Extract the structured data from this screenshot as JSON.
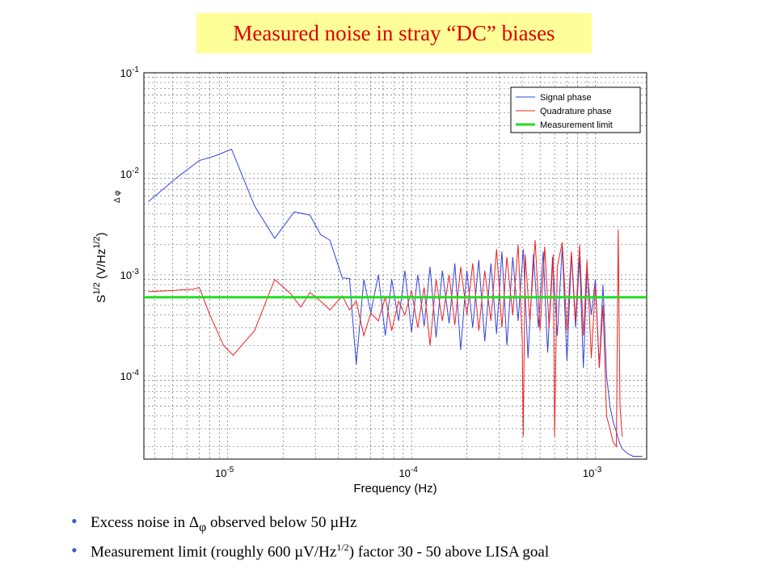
{
  "slide": {
    "title": "Measured noise in stray “DC” biases",
    "title_color": "#e00000",
    "title_bg": "#ffff99",
    "bullets": [
      {
        "pre": "Excess noise in ",
        "symbol": "Δ",
        "sub": "φ",
        "post": " observed below 50 µHz"
      },
      {
        "pre": "Measurement limit (roughly 600 µV/Hz",
        "sup": "1/2",
        "post": ") factor 30 - 50 above LISA goal"
      }
    ],
    "bullet_color": "#3366cc"
  },
  "chart_data": {
    "type": "line",
    "x_scale": "log",
    "y_scale": "log",
    "xlim": [
      3.5e-06,
      0.0019
    ],
    "ylim": [
      1.5e-05,
      0.1
    ],
    "grid": true,
    "xlabel": "Frequency (Hz)",
    "ylabel": "S",
    "ylabel_sup": "1/2",
    "ylabel_sub": "Δ",
    "ylabel_subsub": "φ",
    "ylabel_unit_pre": " (V/Hz",
    "ylabel_unit_sup": "1/2",
    "ylabel_unit_post": ")",
    "x_ticks": [
      {
        "value": 1e-05,
        "base": "10",
        "exp": "-5"
      },
      {
        "value": 0.0001,
        "base": "10",
        "exp": "-4"
      },
      {
        "value": 0.001,
        "base": "10",
        "exp": "-3"
      }
    ],
    "y_ticks": [
      {
        "value": 0.0001,
        "base": "10",
        "exp": "-4"
      },
      {
        "value": 0.001,
        "base": "10",
        "exp": "-3"
      },
      {
        "value": 0.01,
        "base": "10",
        "exp": "-2"
      },
      {
        "value": 0.1,
        "base": "10",
        "exp": "-1"
      }
    ],
    "legend_position": "top-right",
    "series": [
      {
        "name": "Signal phase",
        "color": "#3344dd",
        "points": [
          [
            3.7e-06,
            0.0053
          ],
          [
            5.3e-06,
            0.0092
          ],
          [
            7e-06,
            0.0135
          ],
          [
            8.5e-06,
            0.015
          ],
          [
            1.05e-05,
            0.0175
          ],
          [
            1.4e-05,
            0.0048
          ],
          [
            1.8e-05,
            0.0023
          ],
          [
            2.3e-05,
            0.0042
          ],
          [
            2.8e-05,
            0.0039
          ],
          [
            3.2e-05,
            0.0025
          ],
          [
            3.6e-05,
            0.0022
          ],
          [
            4.2e-05,
            0.00093
          ],
          [
            4.6e-05,
            0.00092
          ],
          [
            5e-05,
            0.00013
          ],
          [
            5.5e-05,
            0.0009
          ],
          [
            6e-05,
            0.00042
          ],
          [
            6.6e-05,
            0.001
          ],
          [
            7.2e-05,
            0.00025
          ],
          [
            7.8e-05,
            0.0009
          ],
          [
            8.5e-05,
            0.00035
          ],
          [
            9.2e-05,
            0.0011
          ],
          [
            0.0001,
            0.00027
          ],
          [
            0.000108,
            0.001
          ],
          [
            0.000117,
            0.00031
          ],
          [
            0.000126,
            0.0012
          ],
          [
            0.000136,
            0.00024
          ],
          [
            0.000147,
            0.0011
          ],
          [
            0.00016,
            0.00033
          ],
          [
            0.000172,
            0.0013
          ],
          [
            0.000185,
            0.00018
          ],
          [
            0.0002,
            0.0011
          ],
          [
            0.000215,
            0.0003
          ],
          [
            0.000232,
            0.0014
          ],
          [
            0.00025,
            0.00022
          ],
          [
            0.00027,
            0.0013
          ],
          [
            0.00029,
            0.00026
          ],
          [
            0.00031,
            0.0017
          ],
          [
            0.00033,
            0.0002
          ],
          [
            0.000355,
            0.0015
          ],
          [
            0.00038,
            0.00035
          ],
          [
            0.000405,
            0.0018
          ],
          [
            0.00043,
            0.00015
          ],
          [
            0.00046,
            0.0016
          ],
          [
            0.00049,
            0.0003
          ],
          [
            0.00052,
            0.0017
          ],
          [
            0.00055,
            0.00017
          ],
          [
            0.000585,
            0.0015
          ],
          [
            0.00062,
            0.00025
          ],
          [
            0.00066,
            0.0019
          ],
          [
            0.0007,
            0.00014
          ],
          [
            0.00074,
            0.0016
          ],
          [
            0.00078,
            0.0003
          ],
          [
            0.00082,
            0.0015
          ],
          [
            0.00086,
            0.00012
          ],
          [
            0.0009,
            0.0011
          ],
          [
            0.00095,
            0.0004
          ],
          [
            0.001,
            0.0009
          ],
          [
            0.00105,
            0.00012
          ],
          [
            0.0011,
            0.0008
          ],
          [
            0.00115,
            0.0001
          ],
          [
            0.0012,
            5e-05
          ],
          [
            0.00125,
            3.5e-05
          ],
          [
            0.0013,
            2.8e-05
          ],
          [
            0.00135,
            2.2e-05
          ],
          [
            0.0014,
            1.9e-05
          ],
          [
            0.0015,
            1.7e-05
          ],
          [
            0.0016,
            1.6e-05
          ],
          [
            0.0017,
            1.6e-05
          ],
          [
            0.0018,
            1.6e-05
          ]
        ]
      },
      {
        "name": "Quadrature phase",
        "color": "#ee2222",
        "points": [
          [
            3.7e-06,
            0.00068
          ],
          [
            5e-06,
            0.0007
          ],
          [
            6.5e-06,
            0.00072
          ],
          [
            7e-06,
            0.00075
          ],
          [
            8e-06,
            0.0004
          ],
          [
            9.5e-06,
            0.0002
          ],
          [
            1.07e-05,
            0.00016
          ],
          [
            1.4e-05,
            0.00028
          ],
          [
            1.8e-05,
            0.0009
          ],
          [
            2.2e-05,
            0.00065
          ],
          [
            2.5e-05,
            0.00048
          ],
          [
            2.8e-05,
            0.00067
          ],
          [
            3.2e-05,
            0.00055
          ],
          [
            3.6e-05,
            0.00045
          ],
          [
            4.2e-05,
            0.00062
          ],
          [
            4.6e-05,
            0.00045
          ],
          [
            5e-05,
            0.00055
          ],
          [
            5.5e-05,
            0.00025
          ],
          [
            6e-05,
            0.00042
          ],
          [
            6.6e-05,
            0.00035
          ],
          [
            7.2e-05,
            0.0006
          ],
          [
            7.8e-05,
            0.00028
          ],
          [
            8.5e-05,
            0.00055
          ],
          [
            9.2e-05,
            0.0004
          ],
          [
            0.0001,
            0.0007
          ],
          [
            0.000108,
            0.0003
          ],
          [
            0.000117,
            0.00075
          ],
          [
            0.000126,
            0.0002
          ],
          [
            0.000136,
            0.0009
          ],
          [
            0.000147,
            0.00035
          ],
          [
            0.00016,
            0.001
          ],
          [
            0.000172,
            0.00032
          ],
          [
            0.000185,
            0.0012
          ],
          [
            0.0002,
            0.0004
          ],
          [
            0.000215,
            0.0013
          ],
          [
            0.000232,
            0.00028
          ],
          [
            0.00025,
            0.0011
          ],
          [
            0.00027,
            0.00035
          ],
          [
            0.00029,
            0.0018
          ],
          [
            0.00031,
            0.0003
          ],
          [
            0.00033,
            0.0015
          ],
          [
            0.000355,
            0.0004
          ],
          [
            0.00038,
            0.002
          ],
          [
            0.0004,
            0.00022
          ],
          [
            0.000405,
            2.5e-05
          ],
          [
            0.000415,
            0.0016
          ],
          [
            0.00044,
            0.00035
          ],
          [
            0.00047,
            0.0022
          ],
          [
            0.0005,
            0.00028
          ],
          [
            0.00053,
            0.0019
          ],
          [
            0.00056,
            0.0003
          ],
          [
            0.00059,
            0.0016
          ],
          [
            0.0006,
            2.5e-05
          ],
          [
            0.00062,
            0.0012
          ],
          [
            0.00066,
            0.0021
          ],
          [
            0.0007,
            0.00028
          ],
          [
            0.00074,
            0.0017
          ],
          [
            0.00078,
            0.00035
          ],
          [
            0.00082,
            0.002
          ],
          [
            0.00086,
            0.00025
          ],
          [
            0.0009,
            0.0014
          ],
          [
            0.00095,
            0.00015
          ],
          [
            0.001,
            0.0008
          ],
          [
            0.00105,
            0.00012
          ],
          [
            0.0011,
            0.0005
          ],
          [
            0.00115,
            4e-05
          ],
          [
            0.0012,
            3e-05
          ],
          [
            0.00125,
            2.2e-05
          ],
          [
            0.0013,
            2e-05
          ],
          [
            0.00133,
            0.0028
          ],
          [
            0.00136,
            5e-05
          ],
          [
            0.0014,
            2.5e-05
          ]
        ]
      },
      {
        "name": "Measurement limit",
        "color": "#22dd22",
        "points": [
          [
            3.5e-06,
            0.0006
          ],
          [
            0.0019,
            0.0006
          ]
        ]
      }
    ]
  }
}
